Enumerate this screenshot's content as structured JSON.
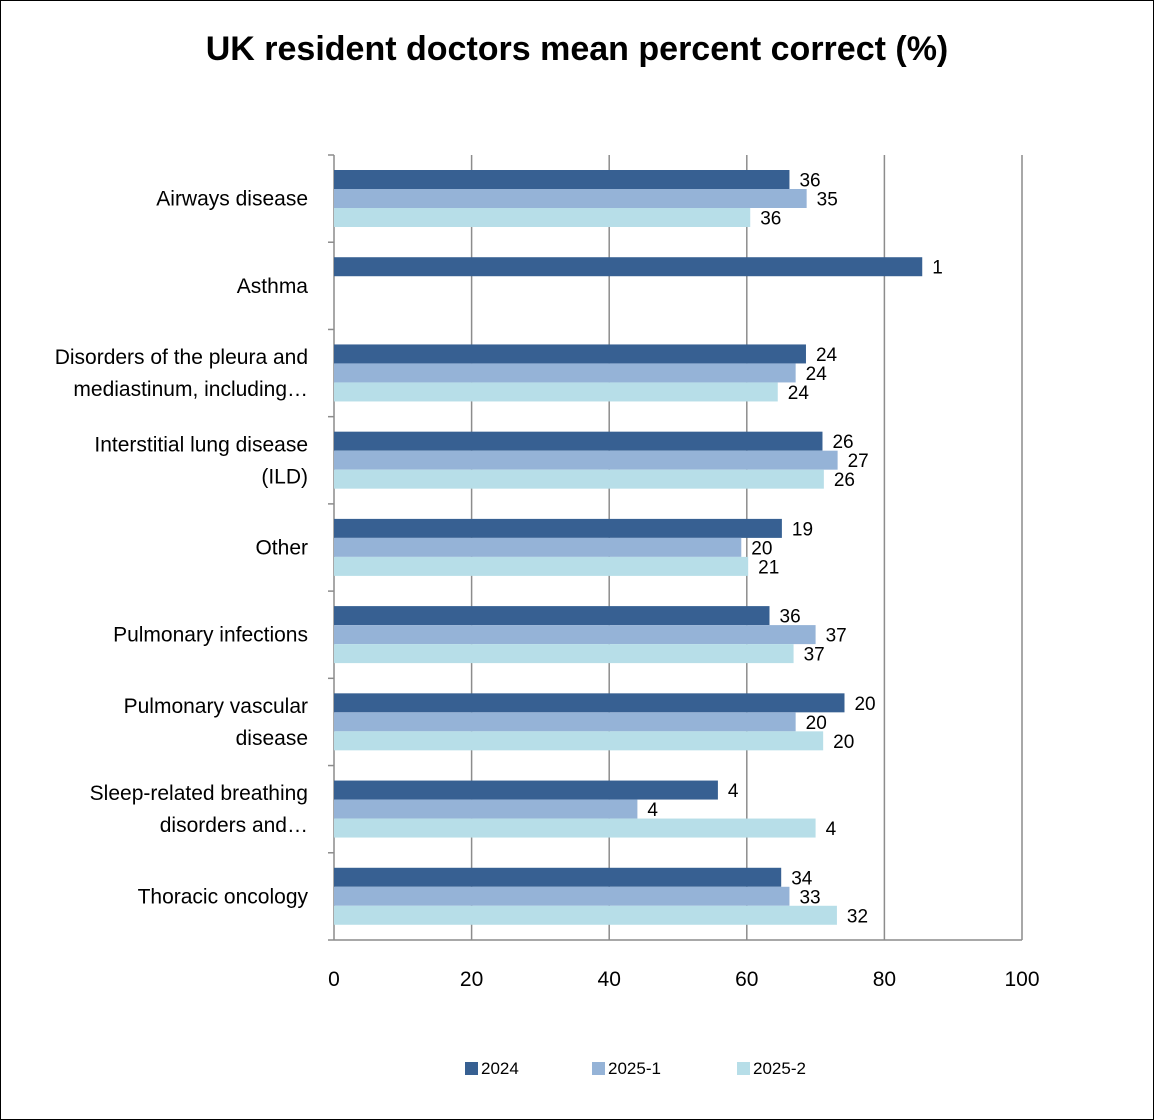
{
  "chart_data": {
    "type": "bar",
    "orientation": "horizontal",
    "title": "UK resident doctors mean percent correct (%)",
    "xlabel": "",
    "ylabel": "",
    "xlim": [
      0,
      100
    ],
    "x_ticks": [
      "0",
      "20",
      "40",
      "60",
      "80",
      "100"
    ],
    "grid": "vertical",
    "legend_position": "bottom",
    "categories": [
      [
        "Airways disease"
      ],
      [
        "Asthma"
      ],
      [
        "Disorders of the pleura and",
        "mediastinum, including…"
      ],
      [
        "Interstitial lung disease",
        "(ILD)"
      ],
      [
        "Other"
      ],
      [
        "Pulmonary infections"
      ],
      [
        "Pulmonary vascular",
        "disease"
      ],
      [
        "Sleep-related breathing",
        "disorders and…"
      ],
      [
        "Thoracic oncology"
      ]
    ],
    "series": [
      {
        "name": "2024",
        "color": "#376092",
        "values": [
          66.2,
          85.5,
          68.6,
          71.0,
          65.1,
          63.3,
          74.2,
          55.8,
          65.0
        ],
        "labels": [
          "36",
          "1",
          "24",
          "26",
          "19",
          "36",
          "20",
          "4",
          "34"
        ]
      },
      {
        "name": "2025-1",
        "color": "#95B3D7",
        "values": [
          68.7,
          null,
          67.1,
          73.2,
          59.2,
          70.0,
          67.1,
          44.1,
          66.2
        ],
        "labels": [
          "35",
          "",
          "24",
          "27",
          "20",
          "37",
          "20",
          "4",
          "33"
        ]
      },
      {
        "name": "2025-2",
        "color": "#B7DEE8",
        "values": [
          60.5,
          null,
          64.5,
          71.2,
          60.2,
          66.8,
          71.1,
          70.0,
          73.1
        ],
        "labels": [
          "36",
          "",
          "24",
          "26",
          "21",
          "37",
          "20",
          "4",
          "32"
        ]
      }
    ]
  }
}
